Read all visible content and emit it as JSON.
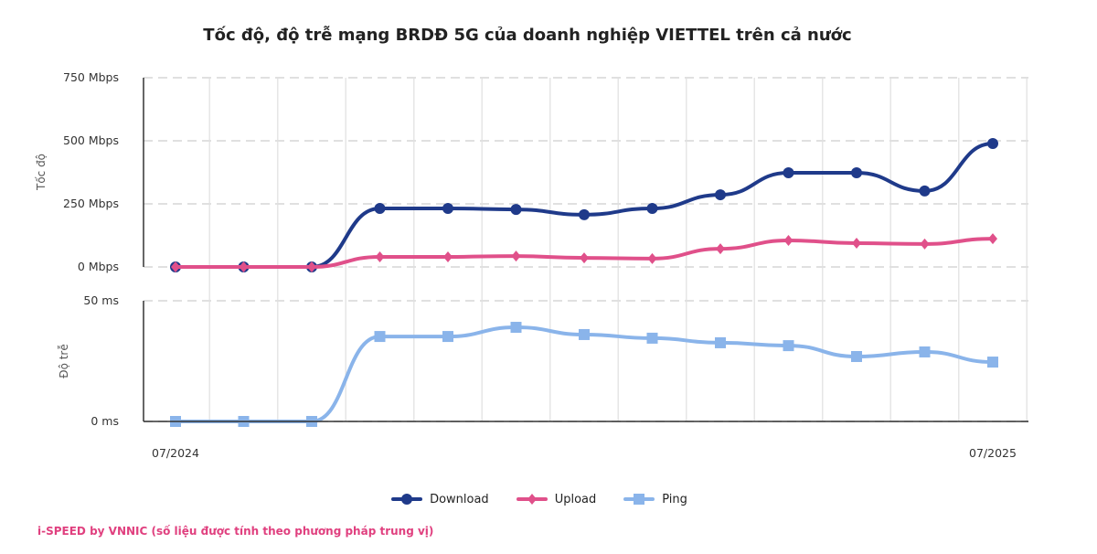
{
  "chart_data": {
    "type": "line",
    "title": "Tốc độ, độ trễ mạng BRDĐ 5G của doanh nghiệp VIETTEL trên cả nước",
    "x_labels_shown": [
      "07/2024",
      "07/2025"
    ],
    "x_count": 13,
    "panels": [
      {
        "ylabel": "Tốc độ",
        "yticks": [
          {
            "v": 0,
            "label": "0 Mbps"
          },
          {
            "v": 250,
            "label": "250 Mbps"
          },
          {
            "v": 500,
            "label": "500 Mbps"
          },
          {
            "v": 750,
            "label": "750 Mbps"
          }
        ],
        "ylim": [
          0,
          750
        ],
        "series": [
          {
            "name": "Download",
            "color": "#1f3a8a",
            "marker": "circle",
            "values": [
              0,
              0,
              0,
              232,
              232,
              228,
              207,
              232,
              286,
              373,
              373,
              301,
              489
            ]
          },
          {
            "name": "Upload",
            "color": "#e0508a",
            "marker": "diamond",
            "values": [
              0,
              0,
              0,
              40,
              40,
              43,
              36,
              33,
              72,
              105,
              94,
              91,
              112
            ]
          }
        ]
      },
      {
        "ylabel": "Độ trễ",
        "yticks": [
          {
            "v": 0,
            "label": "0 ms"
          },
          {
            "v": 50,
            "label": "50 ms"
          }
        ],
        "ylim": [
          0,
          50
        ],
        "series": [
          {
            "name": "Ping",
            "color": "#8ab4ea",
            "marker": "square",
            "values": [
              0,
              0,
              0,
              35.2,
              35.2,
              39,
              36,
              34.5,
              32.6,
              31.4,
              26.9,
              28.8,
              24.6
            ]
          }
        ]
      }
    ],
    "grid": true,
    "legend": "bottom"
  },
  "footer": "i-SPEED by VNNIC (số liệu được tính theo phương pháp trung vị)"
}
